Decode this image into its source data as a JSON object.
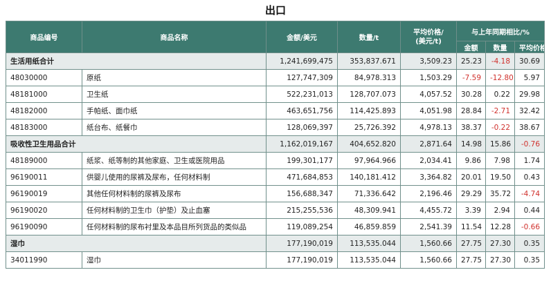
{
  "title": "出口",
  "headers": {
    "code": "商品编号",
    "name": "商品名称",
    "amount": "金额/美元",
    "qty": "数量/t",
    "price": "平均价格/\n(美元/t)",
    "yoy": "与上年同期相比/%",
    "yoy_amount": "金额",
    "yoy_qty": "数量",
    "yoy_price": "平均价格"
  },
  "colors": {
    "header_bg": "#3d7a70",
    "group_bg": "#e6ebeb",
    "negative": "#d0312d"
  },
  "rows": [
    {
      "type": "group",
      "code": "生活用纸合计",
      "name": "",
      "amount": "1,241,699,475",
      "qty": "353,837.671",
      "price": "3,509.23",
      "yoy_amount": "25.23",
      "yoy_qty": "-4.18",
      "yoy_price": "30.69"
    },
    {
      "type": "item",
      "code": "48030000",
      "name": "原纸",
      "amount": "127,747,309",
      "qty": "84,978.313",
      "price": "1,503.29",
      "yoy_amount": "-7.59",
      "yoy_qty": "-12.80",
      "yoy_price": "5.97"
    },
    {
      "type": "item",
      "code": "48181000",
      "name": "卫生纸",
      "amount": "522,231,013",
      "qty": "128,707.073",
      "price": "4,057.52",
      "yoy_amount": "30.28",
      "yoy_qty": "0.22",
      "yoy_price": "29.98"
    },
    {
      "type": "item",
      "code": "48182000",
      "name": "手帕纸、面巾纸",
      "amount": "463,651,756",
      "qty": "114,425.893",
      "price": "4,051.98",
      "yoy_amount": "28.84",
      "yoy_qty": "-2.71",
      "yoy_price": "32.42"
    },
    {
      "type": "item",
      "code": "48183000",
      "name": "纸台布、纸餐巾",
      "amount": "128,069,397",
      "qty": "25,726.392",
      "price": "4,978.13",
      "yoy_amount": "38.37",
      "yoy_qty": "-0.22",
      "yoy_price": "38.67"
    },
    {
      "type": "group",
      "code": "吸收性卫生用品合计",
      "name": "",
      "amount": "1,162,019,167",
      "qty": "404,652.820",
      "price": "2,871.64",
      "yoy_amount": "14.98",
      "yoy_qty": "15.86",
      "yoy_price": "-0.76"
    },
    {
      "type": "item",
      "code": "48189000",
      "name": "纸浆、纸等制的其他家庭、卫生或医院用品",
      "amount": "199,301,177",
      "qty": "97,964.966",
      "price": "2,034.41",
      "yoy_amount": "9.86",
      "yoy_qty": "7.98",
      "yoy_price": "1.74"
    },
    {
      "type": "item",
      "code": "96190011",
      "name": "供婴儿使用的尿裤及尿布，任何材料制",
      "amount": "471,684,853",
      "qty": "140,181.412",
      "price": "3,364.82",
      "yoy_amount": "20.01",
      "yoy_qty": "19.50",
      "yoy_price": "0.43"
    },
    {
      "type": "item",
      "code": "96190019",
      "name": "其他任何材料制的尿裤及尿布",
      "amount": "156,688,347",
      "qty": "71,336.642",
      "price": "2,196.46",
      "yoy_amount": "29.29",
      "yoy_qty": "35.72",
      "yoy_price": "-4.74"
    },
    {
      "type": "item",
      "code": "96190020",
      "name": "任何材料制的卫生巾（护垫）及止血塞",
      "amount": "215,255,536",
      "qty": "48,309.941",
      "price": "4,455.72",
      "yoy_amount": "3.39",
      "yoy_qty": "2.94",
      "yoy_price": "0.44"
    },
    {
      "type": "item",
      "code": "96190090",
      "name": "任何材料制的尿布衬里及本品目所列货品的类似品",
      "amount": "119,089,254",
      "qty": "46,859.859",
      "price": "2,541.39",
      "yoy_amount": "11.54",
      "yoy_qty": "12.28",
      "yoy_price": "-0.66"
    },
    {
      "type": "group",
      "code": "湿巾",
      "name": "",
      "amount": "177,190,019",
      "qty": "113,535.044",
      "price": "1,560.66",
      "yoy_amount": "27.75",
      "yoy_qty": "27.30",
      "yoy_price": "0.35"
    },
    {
      "type": "item",
      "code": "34011990",
      "name": "湿巾",
      "amount": "177,190,019",
      "qty": "113,535.044",
      "price": "1,560.66",
      "yoy_amount": "27.75",
      "yoy_qty": "27.30",
      "yoy_price": "0.35"
    }
  ]
}
